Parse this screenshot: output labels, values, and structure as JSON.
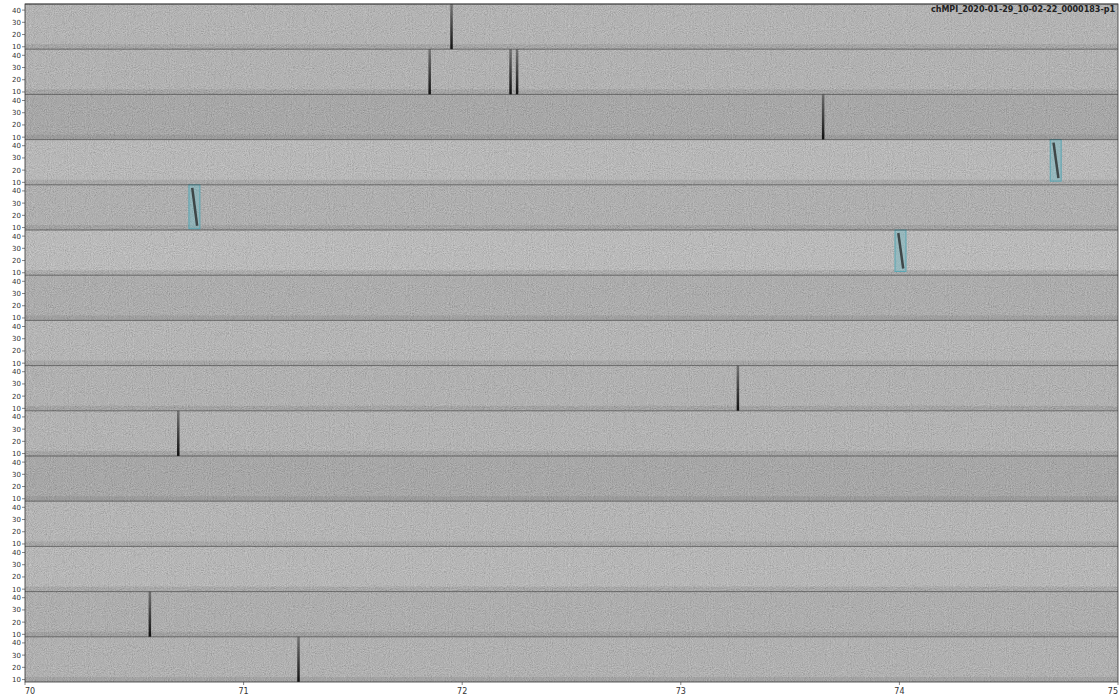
{
  "chart_data": {
    "type": "spectrogram",
    "title": "chMPI_2020-01-29_10-02-22_0000183-p1",
    "xlim": [
      70,
      75
    ],
    "xticks": [
      70,
      71,
      72,
      73,
      74,
      75
    ],
    "ylim": [
      8,
      45
    ],
    "yticks": [
      10,
      20,
      30,
      40
    ],
    "colors": [
      "#a9a9a9",
      "#a6a6a6",
      "#8f8f8f",
      "#b3b3b3",
      "#a0a0a0",
      "#b8b8b8",
      "#9a9a9a",
      "#acacac",
      "#a4a4a4",
      "#a8a8a8",
      "#8e8e8e",
      "#acacac",
      "#b0b0b0",
      "#9d9d9d",
      "#a3a3a3"
    ],
    "boxes": [
      {
        "row": 3,
        "x": [
          74.69,
          74.74
        ],
        "y": [
          11,
          45
        ]
      },
      {
        "row": 4,
        "x": [
          70.75,
          70.8
        ],
        "y": [
          9,
          45
        ]
      },
      {
        "row": 5,
        "x": [
          73.98,
          74.03
        ],
        "y": [
          11,
          45
        ]
      }
    ],
    "events": [
      {
        "row": 0,
        "x": 71.95
      },
      {
        "row": 1,
        "x": 72.22
      },
      {
        "row": 1,
        "x": 72.25
      },
      {
        "row": 1,
        "x": 71.85
      },
      {
        "row": 2,
        "x": 73.65
      },
      {
        "row": 8,
        "x": 73.26
      },
      {
        "row": 9,
        "x": 70.7
      },
      {
        "row": 13,
        "x": 70.57
      },
      {
        "row": 14,
        "x": 71.25
      }
    ]
  }
}
